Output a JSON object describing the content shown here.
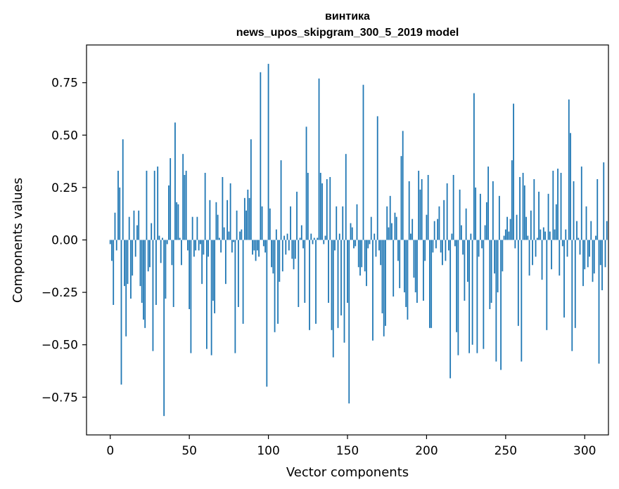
{
  "chart_data": {
    "type": "bar",
    "title": "винтика",
    "subtitle": "news_upos_skipgram_300_5_2019 model",
    "xlabel": "Vector components",
    "ylabel": "Components values",
    "xlim": [
      -15,
      315
    ],
    "ylim": [
      -0.93,
      0.93
    ],
    "xticks": [
      0,
      50,
      100,
      150,
      200,
      250,
      300
    ],
    "yticks": [
      0.75,
      0.5,
      0.25,
      0.0,
      -0.25,
      -0.5,
      -0.75
    ],
    "ytick_labels": [
      "0.75",
      "0.50",
      "0.25",
      "0.00",
      "−0.25",
      "−0.50",
      "−0.75"
    ],
    "xtick_labels": [
      "0",
      "50",
      "100",
      "150",
      "200",
      "250",
      "300"
    ],
    "bar_color": "#1f77b4",
    "values": [
      -0.02,
      -0.1,
      -0.31,
      0.13,
      -0.05,
      0.33,
      0.25,
      -0.69,
      0.48,
      -0.22,
      -0.46,
      -0.21,
      0.11,
      -0.28,
      -0.17,
      0.14,
      -0.08,
      0.07,
      0.14,
      -0.22,
      -0.3,
      -0.38,
      -0.42,
      0.33,
      -0.15,
      -0.13,
      0.08,
      -0.53,
      0.33,
      -0.31,
      0.35,
      0.02,
      -0.11,
      0.01,
      -0.84,
      -0.28,
      -0.02,
      0.26,
      0.39,
      -0.12,
      -0.32,
      0.56,
      0.18,
      0.17,
      0.01,
      -0.12,
      0.41,
      0.31,
      0.33,
      -0.05,
      -0.33,
      -0.54,
      0.11,
      -0.08,
      -0.05,
      0.11,
      -0.05,
      -0.02,
      -0.21,
      -0.07,
      0.32,
      -0.52,
      -0.08,
      0.19,
      -0.55,
      -0.29,
      -0.35,
      0.18,
      0.12,
      0.01,
      -0.06,
      0.3,
      0.06,
      -0.21,
      0.19,
      0.04,
      0.27,
      -0.06,
      -0.01,
      -0.54,
      0.14,
      -0.32,
      0.04,
      0.05,
      -0.4,
      0.2,
      0.14,
      0.24,
      0.2,
      0.48,
      -0.07,
      -0.05,
      -0.1,
      -0.05,
      -0.08,
      0.8,
      0.16,
      -0.03,
      -0.06,
      -0.7,
      0.84,
      0.15,
      -0.13,
      -0.16,
      -0.44,
      0.05,
      -0.4,
      -0.2,
      0.38,
      -0.15,
      0.02,
      -0.07,
      0.03,
      -0.05,
      0.16,
      -0.09,
      -0.14,
      -0.09,
      0.23,
      -0.32,
      0.01,
      0.07,
      -0.04,
      -0.3,
      0.54,
      0.32,
      -0.43,
      0.03,
      -0.02,
      0.01,
      -0.4,
      0.01,
      0.77,
      0.32,
      0.27,
      -0.02,
      0.02,
      0.29,
      -0.3,
      0.3,
      -0.43,
      -0.56,
      -0.05,
      0.16,
      -0.42,
      0.03,
      -0.36,
      0.16,
      -0.49,
      0.41,
      -0.3,
      -0.78,
      0.08,
      0.06,
      -0.04,
      -0.03,
      0.17,
      -0.13,
      -0.17,
      -0.13,
      0.74,
      -0.15,
      -0.22,
      -0.04,
      -0.02,
      0.11,
      -0.48,
      0.03,
      -0.08,
      0.59,
      -0.05,
      -0.12,
      -0.35,
      -0.46,
      -0.41,
      0.16,
      0.06,
      0.21,
      0.08,
      -0.27,
      0.13,
      0.11,
      -0.1,
      -0.23,
      0.4,
      0.52,
      -0.25,
      -0.32,
      -0.38,
      0.28,
      0.03,
      0.1,
      -0.18,
      -0.25,
      -0.3,
      0.33,
      0.24,
      0.29,
      -0.29,
      -0.1,
      0.12,
      0.31,
      -0.42,
      -0.42,
      -0.06,
      0.09,
      -0.04,
      0.1,
      0.16,
      -0.06,
      -0.12,
      0.19,
      -0.1,
      0.27,
      -0.05,
      -0.66,
      0.03,
      0.31,
      -0.03,
      -0.44,
      -0.55,
      0.24,
      0.07,
      -0.07,
      -0.29,
      0.15,
      -0.2,
      -0.54,
      0.03,
      -0.5,
      0.7,
      0.25,
      -0.54,
      -0.08,
      0.22,
      -0.04,
      -0.52,
      0.07,
      0.18,
      0.35,
      -0.33,
      -0.3,
      0.28,
      -0.16,
      -0.58,
      -0.25,
      0.21,
      -0.62,
      -0.15,
      0.02,
      0.05,
      0.11,
      0.04,
      0.1,
      0.38,
      0.65,
      -0.04,
      0.12,
      -0.41,
      0.3,
      -0.58,
      0.32,
      0.26,
      0.11,
      0.02,
      -0.17,
      0.14,
      -0.12,
      0.29,
      -0.08,
      0.01,
      0.23,
      0.05,
      -0.19,
      0.06,
      0.04,
      -0.43,
      0.22,
      0.04,
      -0.14,
      0.33,
      0.05,
      0.17,
      0.34,
      -0.17,
      0.32,
      -0.03,
      -0.37,
      0.05,
      -0.08,
      0.67,
      0.51,
      -0.53,
      0.28,
      -0.42,
      0.09,
      0.01,
      -0.07,
      0.35,
      -0.22,
      -0.14,
      0.16,
      -0.13,
      -0.08,
      0.09,
      -0.2,
      -0.16,
      0.02,
      0.29,
      -0.59,
      -0.12,
      -0.24,
      0.37,
      -0.13,
      0.09
    ]
  }
}
